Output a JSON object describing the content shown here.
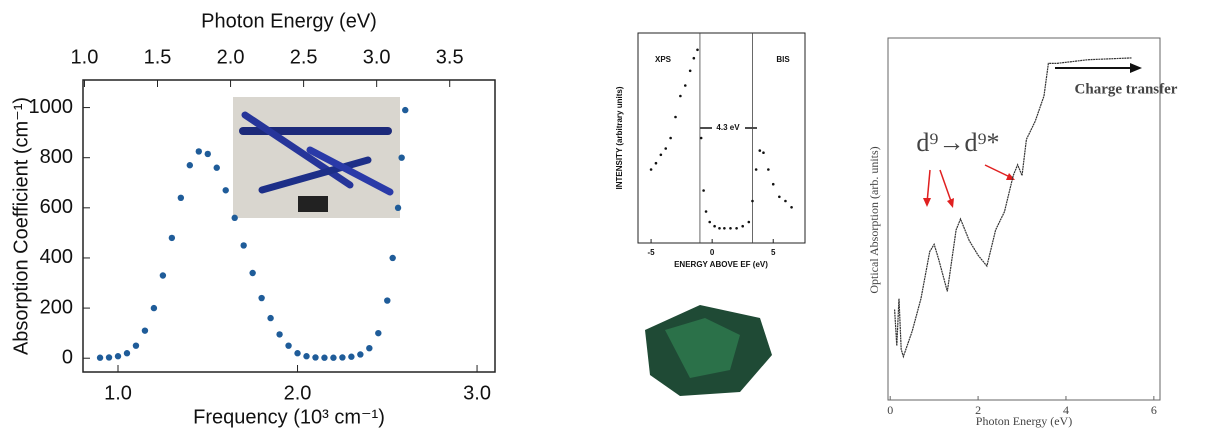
{
  "chart_data": [
    {
      "type": "scatter",
      "x_label": "Frequency (10³ cm⁻¹)",
      "y_label": "Absorption Coefficient (cm⁻¹)",
      "x2_label": "Photon Energy (eV)",
      "x": [
        0.9,
        0.95,
        1.0,
        1.05,
        1.1,
        1.15,
        1.2,
        1.25,
        1.3,
        1.35,
        1.4,
        1.45,
        1.5,
        1.55,
        1.6,
        1.65,
        1.7,
        1.75,
        1.8,
        1.85,
        1.9,
        1.95,
        2.0,
        2.05,
        2.1,
        2.15,
        2.2,
        2.25,
        2.3,
        2.35,
        2.4,
        2.45,
        2.5,
        2.53,
        2.56,
        2.58,
        2.6
      ],
      "values": [
        2,
        3,
        8,
        20,
        50,
        110,
        200,
        330,
        480,
        640,
        770,
        825,
        815,
        760,
        670,
        560,
        450,
        340,
        240,
        160,
        95,
        50,
        20,
        8,
        3,
        2,
        2,
        3,
        6,
        15,
        40,
        100,
        230,
        400,
        600,
        800,
        990
      ],
      "color": "#1f5c99",
      "xlim": [
        0.805,
        3.1
      ],
      "ylim": [
        -55,
        1110
      ],
      "x2lim": [
        0.99,
        3.81
      ],
      "xticks": [
        {
          "value": 1,
          "label": "1.0"
        },
        {
          "value": 2,
          "label": "2.0"
        },
        {
          "value": 3,
          "label": "3.0"
        }
      ],
      "yticks": [
        0,
        200,
        400,
        600,
        800,
        1000
      ],
      "x2ticks": [
        {
          "value": 1,
          "label": "1.0"
        },
        1.5,
        {
          "value": 2,
          "label": "2.0"
        },
        2.5,
        {
          "value": 3,
          "label": "3.0"
        },
        3.5
      ]
    },
    {
      "type": "scatter",
      "x_label": "ENERGY ABOVE EF (eV)",
      "y_label": "INTENSITY (arbitrary units)",
      "x": [
        -5.0,
        -4.6,
        -4.2,
        -3.8,
        -3.4,
        -3.0,
        -2.6,
        -2.2,
        -1.8,
        -1.5,
        -1.2,
        -0.9,
        -0.7,
        -0.5,
        -0.2,
        0.2,
        0.6,
        1.0,
        1.5,
        2.0,
        2.5,
        3.0,
        3.3,
        3.6,
        3.9,
        4.2,
        4.6,
        5.0,
        5.5,
        6.0,
        6.5
      ],
      "values": [
        35,
        38,
        42,
        45,
        50,
        60,
        70,
        75,
        82,
        88,
        92,
        50,
        25,
        15,
        10,
        8,
        7,
        7,
        7,
        7,
        8,
        10,
        20,
        35,
        44,
        43,
        35,
        28,
        22,
        20,
        17
      ],
      "color": "#111111",
      "xlim": [
        -6.07,
        7.6
      ],
      "ylim": [
        0,
        100
      ],
      "xticks": [
        -5,
        0,
        5
      ],
      "vlines": [
        -1,
        3.3
      ],
      "annotations": [
        "XPS",
        "BIS",
        "4.3 eV"
      ]
    },
    {
      "type": "line",
      "x_label": "Photon Energy (eV)",
      "y_label": "Optical Absorption  (arb. units)",
      "x": [
        0.1,
        0.15,
        0.2,
        0.25,
        0.3,
        0.5,
        0.7,
        0.9,
        1.0,
        1.1,
        1.3,
        1.5,
        1.6,
        1.8,
        2.0,
        2.2,
        2.4,
        2.6,
        2.8,
        2.9,
        3.0,
        3.1,
        3.3,
        3.5,
        3.6,
        3.8,
        4.5,
        5.5
      ],
      "values": [
        25,
        15,
        28,
        14,
        12,
        19,
        28,
        41,
        43,
        39,
        30,
        47,
        50,
        44,
        40,
        37,
        47,
        52,
        62,
        65,
        62,
        72,
        77,
        84,
        93,
        93,
        94,
        94.5
      ],
      "color": "#333333",
      "xlim": [
        -0.05,
        6.14
      ],
      "ylim": [
        0,
        100
      ],
      "xticks": [
        0,
        2,
        4,
        6
      ],
      "annotations": [
        "d⁹→d⁹*",
        "Charge transfer"
      ]
    }
  ]
}
